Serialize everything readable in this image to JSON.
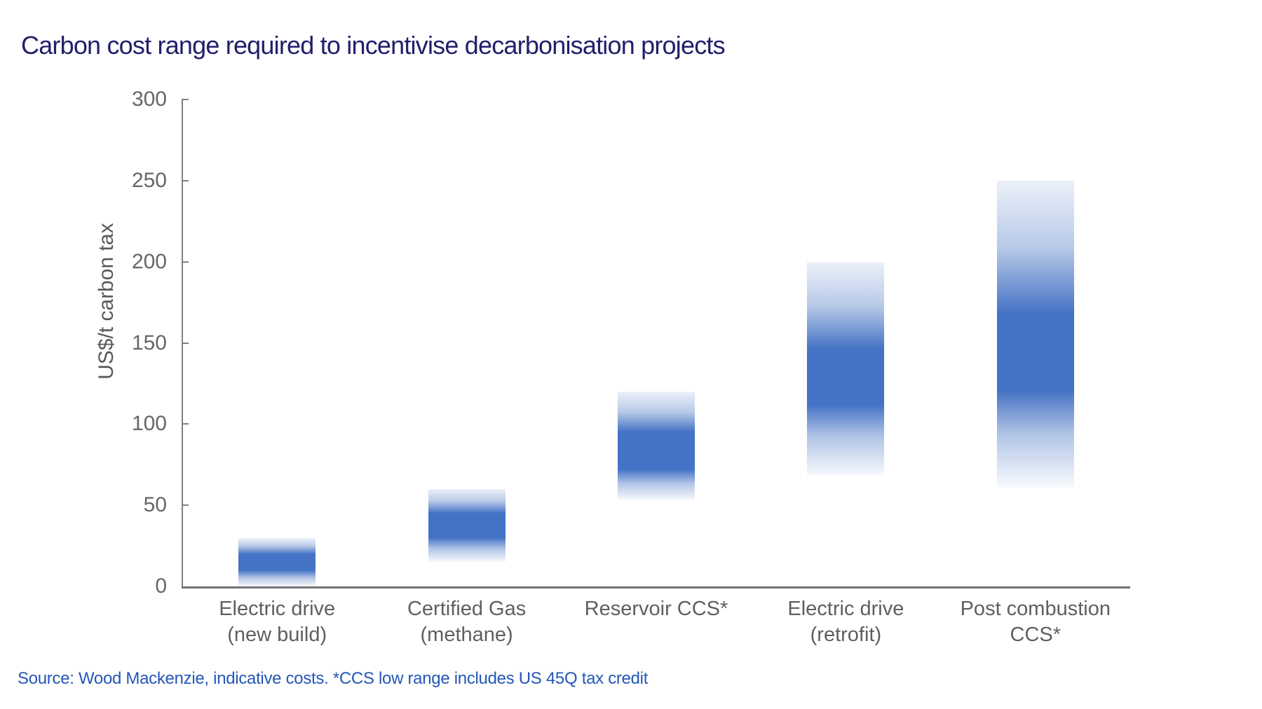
{
  "title": "Carbon cost range required to incentivise decarbonisation projects",
  "source_note": "Source: Wood Mackenzie, indicative costs. *CCS low range includes US 45Q tax credit",
  "colors": {
    "title_text": "#221e6b",
    "source_text": "#2457b8",
    "axis_line": "#808080",
    "tick_label": "#666666",
    "category_label": "#5f5f5f",
    "bar_solid": "#4472c4",
    "background": "#ffffff"
  },
  "chart_data": {
    "type": "bar",
    "subtype": "floating_range_columns_with_gradient_fade",
    "title": "Carbon cost range required to incentivise decarbonisation projects",
    "xlabel": "",
    "ylabel": "US$/t carbon tax",
    "ylim": [
      0,
      300
    ],
    "yticks": [
      0,
      50,
      100,
      150,
      200,
      250,
      300
    ],
    "grid": false,
    "legend": false,
    "bar_color": "#4472c4",
    "categories": [
      "Electric drive (new build)",
      "Certified Gas (methane)",
      "Reservoir CCS*",
      "Electric drive (retrofit)",
      "Post combustion CCS*"
    ],
    "category_label_lines": [
      [
        "Electric drive",
        "(new build)"
      ],
      [
        "Certified Gas",
        "(methane)"
      ],
      [
        "Reservoir CCS*"
      ],
      [
        "Electric drive",
        "(retrofit)"
      ],
      [
        "Post combustion",
        "CCS*"
      ]
    ],
    "series": [
      {
        "name": "Carbon cost range (US$/t carbon tax)",
        "ranges": [
          {
            "category": "Electric drive (new build)",
            "low": 0,
            "high": 30,
            "core_low": 10,
            "core_high": 20
          },
          {
            "category": "Certified Gas (methane)",
            "low": 15,
            "high": 60,
            "core_low": 30,
            "core_high": 45
          },
          {
            "category": "Reservoir CCS*",
            "low": 53,
            "high": 120,
            "core_low": 72,
            "core_high": 95
          },
          {
            "category": "Electric drive (retrofit)",
            "low": 68,
            "high": 200,
            "core_low": 112,
            "core_high": 146
          },
          {
            "category": "Post combustion CCS*",
            "low": 61,
            "high": 250,
            "core_low": 121,
            "core_high": 168
          }
        ]
      }
    ]
  }
}
